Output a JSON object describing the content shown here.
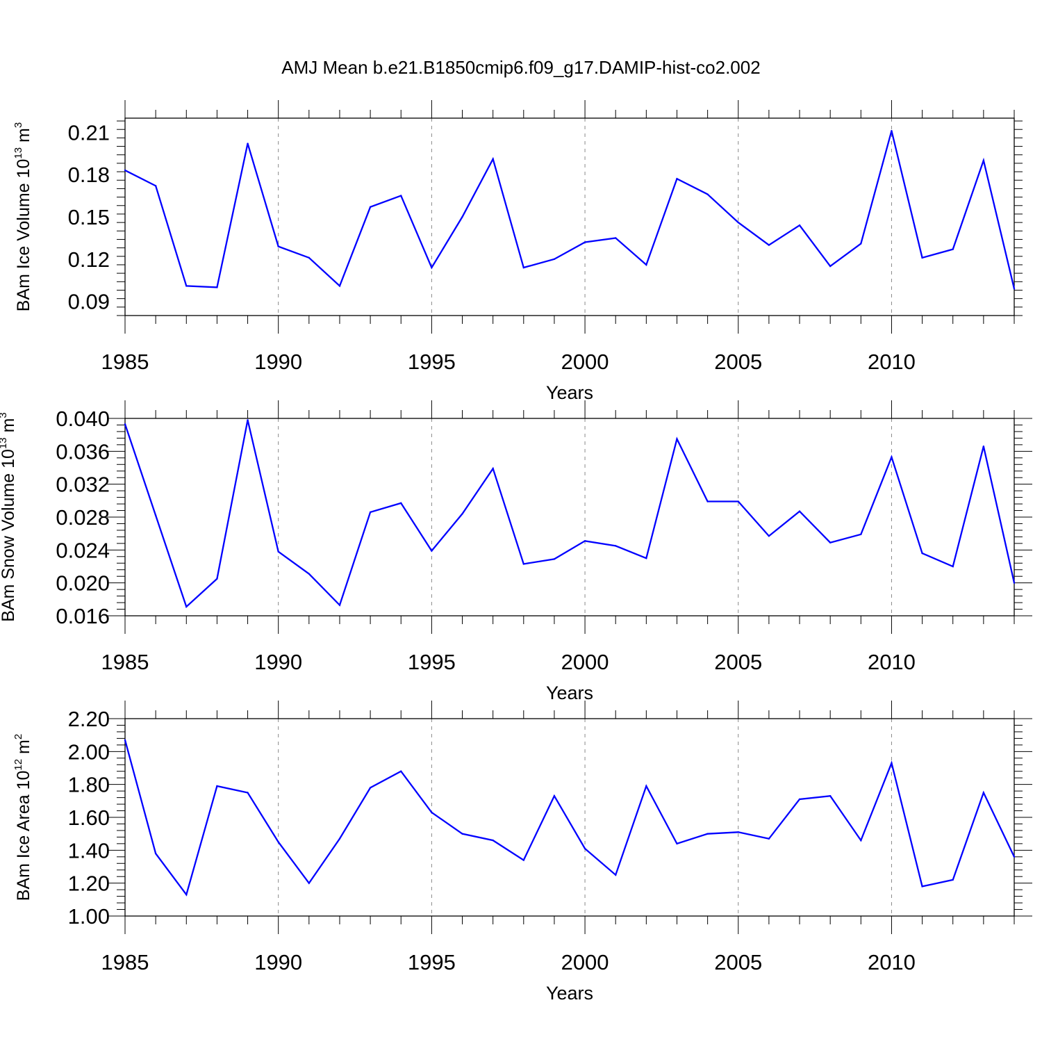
{
  "chart_data": {
    "type": "line",
    "title": "AMJ Mean b.e21.B1850cmip6.f09_g17.DAMIP-hist-co2.002",
    "line_color": "#0000ff",
    "grid": "dashed vertical lines at major year ticks",
    "x": [
      1985,
      1986,
      1987,
      1988,
      1989,
      1990,
      1991,
      1992,
      1993,
      1994,
      1995,
      1996,
      1997,
      1998,
      1999,
      2000,
      2001,
      2002,
      2003,
      2004,
      2005,
      2006,
      2007,
      2008,
      2009,
      2010,
      2011,
      2012,
      2013,
      2014
    ],
    "xlim": [
      1985,
      2014
    ],
    "xticks": [
      "1985",
      "1990",
      "1995",
      "2000",
      "2005",
      "2010"
    ],
    "xlabel": "Years",
    "panels": [
      {
        "ylabel_main": "BAm Ice Volume 10",
        "ylabel_exp": "13",
        "ylabel_unit": " m",
        "ylabel_unit_exp": "3",
        "ylim": [
          0.08,
          0.22
        ],
        "yticks": [
          "0.09",
          "0.12",
          "0.15",
          "0.18",
          "0.21"
        ],
        "values": [
          0.183,
          0.172,
          0.101,
          0.1,
          0.202,
          0.129,
          0.121,
          0.101,
          0.157,
          0.165,
          0.114,
          0.15,
          0.191,
          0.114,
          0.12,
          0.132,
          0.135,
          0.116,
          0.177,
          0.166,
          0.146,
          0.13,
          0.144,
          0.115,
          0.131,
          0.211,
          0.121,
          0.127,
          0.19,
          0.099
        ]
      },
      {
        "ylabel_main": "BAm Snow Volume 10",
        "ylabel_exp": "13",
        "ylabel_unit": " m",
        "ylabel_unit_exp": "3",
        "ylim": [
          0.016,
          0.04
        ],
        "yticks": [
          "0.016",
          "0.020",
          "0.024",
          "0.028",
          "0.032",
          "0.036",
          "0.040"
        ],
        "values": [
          0.0393,
          0.0282,
          0.0171,
          0.0205,
          0.0398,
          0.0238,
          0.0211,
          0.0173,
          0.0286,
          0.0297,
          0.0239,
          0.0284,
          0.0339,
          0.0223,
          0.0229,
          0.0251,
          0.0245,
          0.023,
          0.0375,
          0.0299,
          0.0299,
          0.0257,
          0.0287,
          0.0249,
          0.0259,
          0.0353,
          0.0236,
          0.022,
          0.0366,
          0.02
        ]
      },
      {
        "ylabel_main": "BAm Ice Area 10",
        "ylabel_exp": "12",
        "ylabel_unit": " m",
        "ylabel_unit_exp": "2",
        "ylim": [
          1.0,
          2.2
        ],
        "yticks": [
          "1.00",
          "1.20",
          "1.40",
          "1.60",
          "1.80",
          "2.00",
          "2.20"
        ],
        "values": [
          2.07,
          1.38,
          1.13,
          1.79,
          1.75,
          1.45,
          1.2,
          1.47,
          1.78,
          1.88,
          1.63,
          1.5,
          1.46,
          1.34,
          1.73,
          1.41,
          1.25,
          1.79,
          1.44,
          1.5,
          1.51,
          1.47,
          1.71,
          1.73,
          1.46,
          1.93,
          1.18,
          1.22,
          1.75,
          1.36
        ]
      }
    ]
  }
}
